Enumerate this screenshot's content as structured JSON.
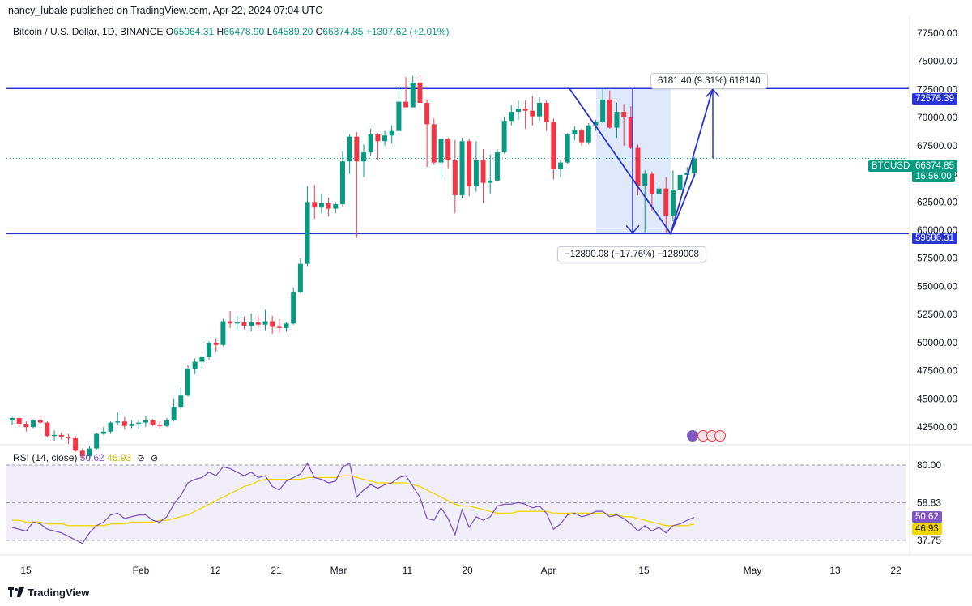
{
  "header": {
    "published_by": "nancy_lubale published on TradingView.com, Apr 22, 2024 07:04 UTC"
  },
  "legend": {
    "symbol": "Bitcoin / U.S. Dollar, 1D, BINANCE",
    "o_label": "O",
    "o_value": "65064.31",
    "h_label": "H",
    "h_value": "66478.90",
    "l_label": "L",
    "l_value": "64589.20",
    "c_label": "C",
    "c_value": "66374.85",
    "change": "+1307.62 (+2.01%)"
  },
  "rsi_legend": {
    "label": "RSI (14, close)",
    "rsi_value": "50.62",
    "ma_value": "46.93"
  },
  "price_tags": {
    "resistance": "72576.39",
    "support": "59686.31",
    "symbol": "BTCUSD",
    "last": "66374.85",
    "countdown": "16:56:00",
    "rsi": "50.62",
    "rsi_ma": "46.93"
  },
  "annotations": {
    "up_measure": "6181.40 (9.31%) 618140",
    "down_measure": "−12890.08 (−17.76%) −1289008"
  },
  "brand": "TradingView",
  "colors": {
    "up": "#089981",
    "down": "#f23645",
    "line": "#2934d6",
    "rsi": "#7e57c2",
    "rsi_ma": "#f2d600",
    "band": "#ede7f6",
    "highlight": "#dbe4fb"
  },
  "chart_data": {
    "type": "candlestick",
    "symbol": "BTCUSD",
    "x_ticks": [
      "15",
      "Feb",
      "12",
      "21",
      "Mar",
      "11",
      "20",
      "Apr",
      "15",
      "May",
      "13",
      "22"
    ],
    "y_ticks": [
      42500,
      45000,
      47500,
      50000,
      52500,
      55000,
      57500,
      60000,
      62500,
      65000,
      67500,
      70000,
      72500,
      75000,
      77500
    ],
    "y_tick_labels": [
      "42500.00",
      "45000.00",
      "47500.00",
      "50000.00",
      "52500.00",
      "55000.00",
      "57500.00",
      "60000.00",
      "62500.00",
      "65000.00",
      "67500.00",
      "70000.00",
      "72500.00",
      "75000.00",
      "77500.00"
    ],
    "ylim": [
      41000,
      79000
    ],
    "horizontal_lines": [
      72576.39,
      59686.31
    ],
    "candles": [
      [
        43100,
        43400,
        42700,
        43300
      ],
      [
        43300,
        43500,
        42500,
        42800
      ],
      [
        42800,
        43000,
        42100,
        42500
      ],
      [
        42500,
        43200,
        42400,
        43100
      ],
      [
        43100,
        43500,
        42800,
        42900
      ],
      [
        42900,
        43000,
        41600,
        41700
      ],
      [
        41700,
        42200,
        41300,
        41800
      ],
      [
        41800,
        42000,
        41400,
        41600
      ],
      [
        41600,
        41900,
        41000,
        41500
      ],
      [
        41500,
        41700,
        40300,
        40400
      ],
      [
        40400,
        40600,
        39700,
        39900
      ],
      [
        39900,
        40800,
        39500,
        40600
      ],
      [
        40600,
        42000,
        40500,
        41900
      ],
      [
        41900,
        42500,
        41800,
        42100
      ],
      [
        42100,
        43000,
        41900,
        42900
      ],
      [
        42900,
        43800,
        42700,
        43000
      ],
      [
        43000,
        43400,
        42300,
        42600
      ],
      [
        42600,
        43100,
        42400,
        42800
      ],
      [
        42800,
        43200,
        42300,
        42900
      ],
      [
        42900,
        43500,
        42500,
        43100
      ],
      [
        43100,
        43200,
        42600,
        42700
      ],
      [
        42700,
        43000,
        42400,
        42600
      ],
      [
        42600,
        43300,
        42500,
        43100
      ],
      [
        43100,
        45000,
        43000,
        44300
      ],
      [
        44300,
        46000,
        44100,
        45300
      ],
      [
        45300,
        48000,
        45200,
        47700
      ],
      [
        47700,
        48600,
        47200,
        48300
      ],
      [
        48300,
        48900,
        47700,
        48700
      ],
      [
        48700,
        50100,
        48500,
        50000
      ],
      [
        50000,
        50400,
        49200,
        49800
      ],
      [
        49800,
        52100,
        49700,
        51900
      ],
      [
        51900,
        52800,
        51300,
        51700
      ],
      [
        51700,
        52400,
        51200,
        51800
      ],
      [
        51800,
        52300,
        51200,
        51500
      ],
      [
        51500,
        52600,
        51000,
        51800
      ],
      [
        51800,
        52400,
        51300,
        51600
      ],
      [
        51600,
        52900,
        51100,
        51900
      ],
      [
        51900,
        52400,
        50800,
        51400
      ],
      [
        51400,
        52100,
        50900,
        51300
      ],
      [
        51300,
        51800,
        51000,
        51700
      ],
      [
        51700,
        54900,
        51600,
        54500
      ],
      [
        54500,
        57500,
        54400,
        57000
      ],
      [
        57000,
        63900,
        56800,
        62500
      ],
      [
        62500,
        64000,
        61000,
        62000
      ],
      [
        62000,
        63200,
        61500,
        62400
      ],
      [
        62400,
        62900,
        61200,
        61900
      ],
      [
        61900,
        62500,
        61500,
        62300
      ],
      [
        62300,
        67000,
        62100,
        66100
      ],
      [
        66100,
        68500,
        65000,
        68300
      ],
      [
        68300,
        68700,
        59300,
        66100
      ],
      [
        66100,
        67600,
        64700,
        66900
      ],
      [
        66900,
        69000,
        66600,
        68500
      ],
      [
        68500,
        68600,
        66200,
        67900
      ],
      [
        67900,
        68800,
        67500,
        68400
      ],
      [
        68400,
        69300,
        67700,
        68800
      ],
      [
        68800,
        72700,
        68600,
        71400
      ],
      [
        71400,
        73600,
        71000,
        70900
      ],
      [
        70900,
        73700,
        71200,
        73100
      ],
      [
        73100,
        73800,
        71400,
        71300
      ],
      [
        71300,
        71600,
        65600,
        69400
      ],
      [
        69400,
        69900,
        65800,
        66000
      ],
      [
        66000,
        68200,
        64500,
        68100
      ],
      [
        68100,
        68200,
        65500,
        66200
      ],
      [
        66200,
        68000,
        61500,
        63100
      ],
      [
        63100,
        68200,
        62800,
        67900
      ],
      [
        67900,
        68100,
        63000,
        63900
      ],
      [
        63900,
        67900,
        63400,
        66200
      ],
      [
        66200,
        67200,
        62400,
        64200
      ],
      [
        64200,
        66700,
        63200,
        64400
      ],
      [
        64400,
        67200,
        64300,
        66900
      ],
      [
        66900,
        70100,
        66800,
        69700
      ],
      [
        69700,
        71100,
        69300,
        70500
      ],
      [
        70500,
        71500,
        69800,
        70800
      ],
      [
        70800,
        71500,
        69000,
        70600
      ],
      [
        70600,
        71900,
        69300,
        70100
      ],
      [
        70100,
        71800,
        69700,
        71300
      ],
      [
        71300,
        71500,
        68800,
        69600
      ],
      [
        69600,
        69900,
        64500,
        65400
      ],
      [
        65400,
        66200,
        64700,
        66000
      ],
      [
        66000,
        68600,
        65900,
        68500
      ],
      [
        68500,
        69200,
        68000,
        68900
      ],
      [
        68900,
        69000,
        67500,
        67800
      ],
      [
        67800,
        69500,
        67600,
        69300
      ],
      [
        69300,
        69800,
        68800,
        69600
      ],
      [
        69600,
        72600,
        69500,
        71600
      ],
      [
        71600,
        72400,
        69000,
        69100
      ],
      [
        69100,
        71300,
        68200,
        70500
      ],
      [
        70500,
        71200,
        67500,
        70000
      ],
      [
        70000,
        71000,
        67200,
        67300
      ],
      [
        67300,
        67600,
        63100,
        63900
      ],
      [
        63900,
        65300,
        59800,
        65000
      ],
      [
        65000,
        65200,
        61700,
        63200
      ],
      [
        63200,
        64100,
        61800,
        63700
      ],
      [
        63700,
        64700,
        59700,
        61300
      ],
      [
        61300,
        65300,
        60800,
        63600
      ],
      [
        63600,
        64900,
        63200,
        64900
      ],
      [
        64900,
        65600,
        64500,
        65100
      ],
      [
        65100,
        66500,
        64600,
        66374.85
      ]
    ],
    "rsi": [
      45,
      44,
      43,
      48,
      47,
      44,
      43,
      42,
      40,
      38,
      36,
      42,
      46,
      48,
      52,
      53,
      50,
      51,
      52,
      52,
      49,
      48,
      51,
      58,
      63,
      70,
      72,
      73,
      76,
      74,
      79,
      78,
      76,
      74,
      76,
      73,
      74,
      68,
      66,
      71,
      73,
      75,
      81,
      73,
      72,
      70,
      71,
      79,
      81,
      62,
      66,
      69,
      67,
      69,
      70,
      73,
      74,
      68,
      62,
      50,
      49,
      56,
      50,
      41,
      55,
      45,
      51,
      49,
      51,
      57,
      58,
      58,
      59,
      58,
      56,
      57,
      53,
      44,
      47,
      52,
      53,
      51,
      52,
      54,
      54,
      51,
      52,
      50,
      47,
      43,
      46,
      43,
      45,
      42,
      46,
      47,
      49,
      50.62
    ],
    "rsi_ma": [
      49,
      49,
      48,
      48,
      48,
      47,
      47,
      47,
      46,
      46,
      46,
      46,
      46,
      46,
      47,
      47,
      47,
      48,
      48,
      48,
      48,
      49,
      49,
      50,
      51,
      52,
      54,
      56,
      58,
      60,
      62,
      64,
      66,
      68,
      69,
      71,
      72,
      72,
      72,
      72,
      72,
      72,
      73,
      73,
      73,
      73,
      73,
      74,
      74,
      73,
      72,
      71,
      70,
      70,
      70,
      70,
      70,
      69,
      68,
      66,
      64,
      62,
      60,
      58,
      57,
      57,
      56,
      55,
      54,
      53,
      53,
      53,
      54,
      54,
      54,
      54,
      54,
      53,
      53,
      53,
      53,
      53,
      53,
      53,
      53,
      52,
      52,
      51,
      51,
      50,
      49,
      48,
      47,
      46,
      46,
      46,
      46,
      46.93
    ],
    "rsi_ylim": [
      30,
      90
    ],
    "rsi_levels": [
      80.0,
      58.83,
      37.75
    ],
    "rsi_tick_labels": [
      "80.00",
      "58.83",
      "37.75"
    ]
  }
}
